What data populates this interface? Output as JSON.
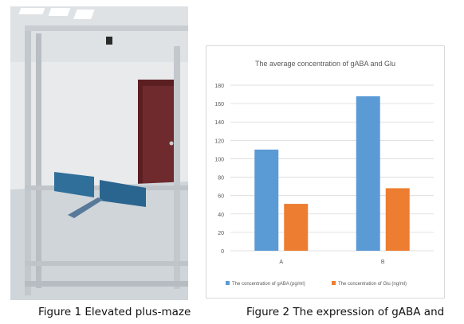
{
  "photo": {
    "description_icon": "elevated-plus-maze-photo",
    "colors": {
      "wall": "#e6e9ec",
      "door": "#5b1f22",
      "frame": "#c8cdd2",
      "maze": "#2f6f9a"
    }
  },
  "captions": {
    "figure1": "Figure 1 Elevated plus-maze",
    "figure2": "Figure 2 The expression of gABA and"
  },
  "chart_data": {
    "type": "bar",
    "title": "The average concentration of gABA and Glu",
    "categories": [
      "A",
      "B"
    ],
    "series": [
      {
        "name": "The concentration of gABA (pg/ml)",
        "values": [
          110,
          168
        ],
        "color": "#5b9bd5"
      },
      {
        "name": "The concentration of Glu (ng/ml)",
        "values": [
          51,
          68
        ],
        "color": "#ed7d31"
      }
    ],
    "xlabel": "",
    "ylabel": "",
    "ylim": [
      0,
      180
    ],
    "yticks": [
      0,
      20,
      40,
      60,
      80,
      100,
      120,
      140,
      160,
      180
    ],
    "grid": true,
    "legend": "bottom"
  }
}
